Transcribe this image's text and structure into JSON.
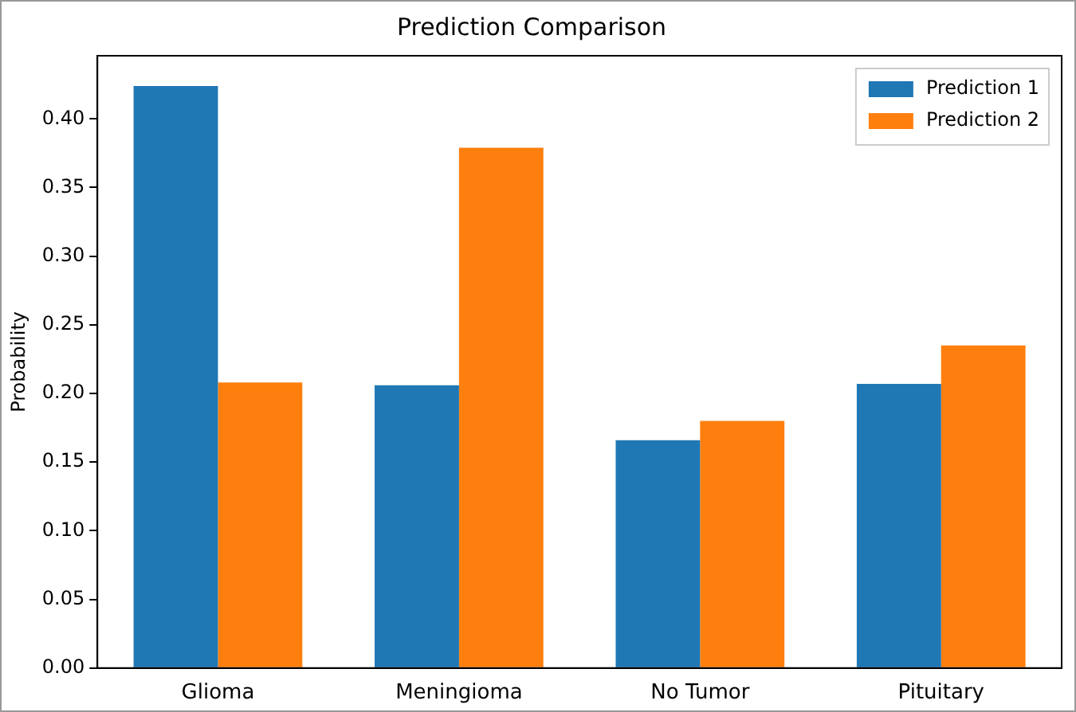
{
  "chart_data": {
    "type": "bar",
    "title": "Prediction Comparison",
    "ylabel": "Probability",
    "categories": [
      "Glioma",
      "Meningioma",
      "No Tumor",
      "Pituitary"
    ],
    "series": [
      {
        "name": "Prediction 1",
        "color": "#1f77b4",
        "values": [
          0.424,
          0.206,
          0.166,
          0.207
        ]
      },
      {
        "name": "Prediction 2",
        "color": "#ff7f0e",
        "values": [
          0.208,
          0.379,
          0.18,
          0.235
        ]
      }
    ],
    "ylim": [
      0,
      0.446
    ],
    "yticks": [
      {
        "value": 0,
        "label": "0.00"
      },
      {
        "value": 0.05,
        "label": "0.05"
      },
      {
        "value": 0.1,
        "label": "0.10"
      },
      {
        "value": 0.15,
        "label": "0.15"
      },
      {
        "value": 0.2,
        "label": "0.20"
      },
      {
        "value": 0.25,
        "label": "0.25"
      },
      {
        "value": 0.3,
        "label": "0.30"
      },
      {
        "value": 0.35,
        "label": "0.35"
      },
      {
        "value": 0.4,
        "label": "0.40"
      }
    ],
    "grid": false,
    "legend": "top right"
  }
}
